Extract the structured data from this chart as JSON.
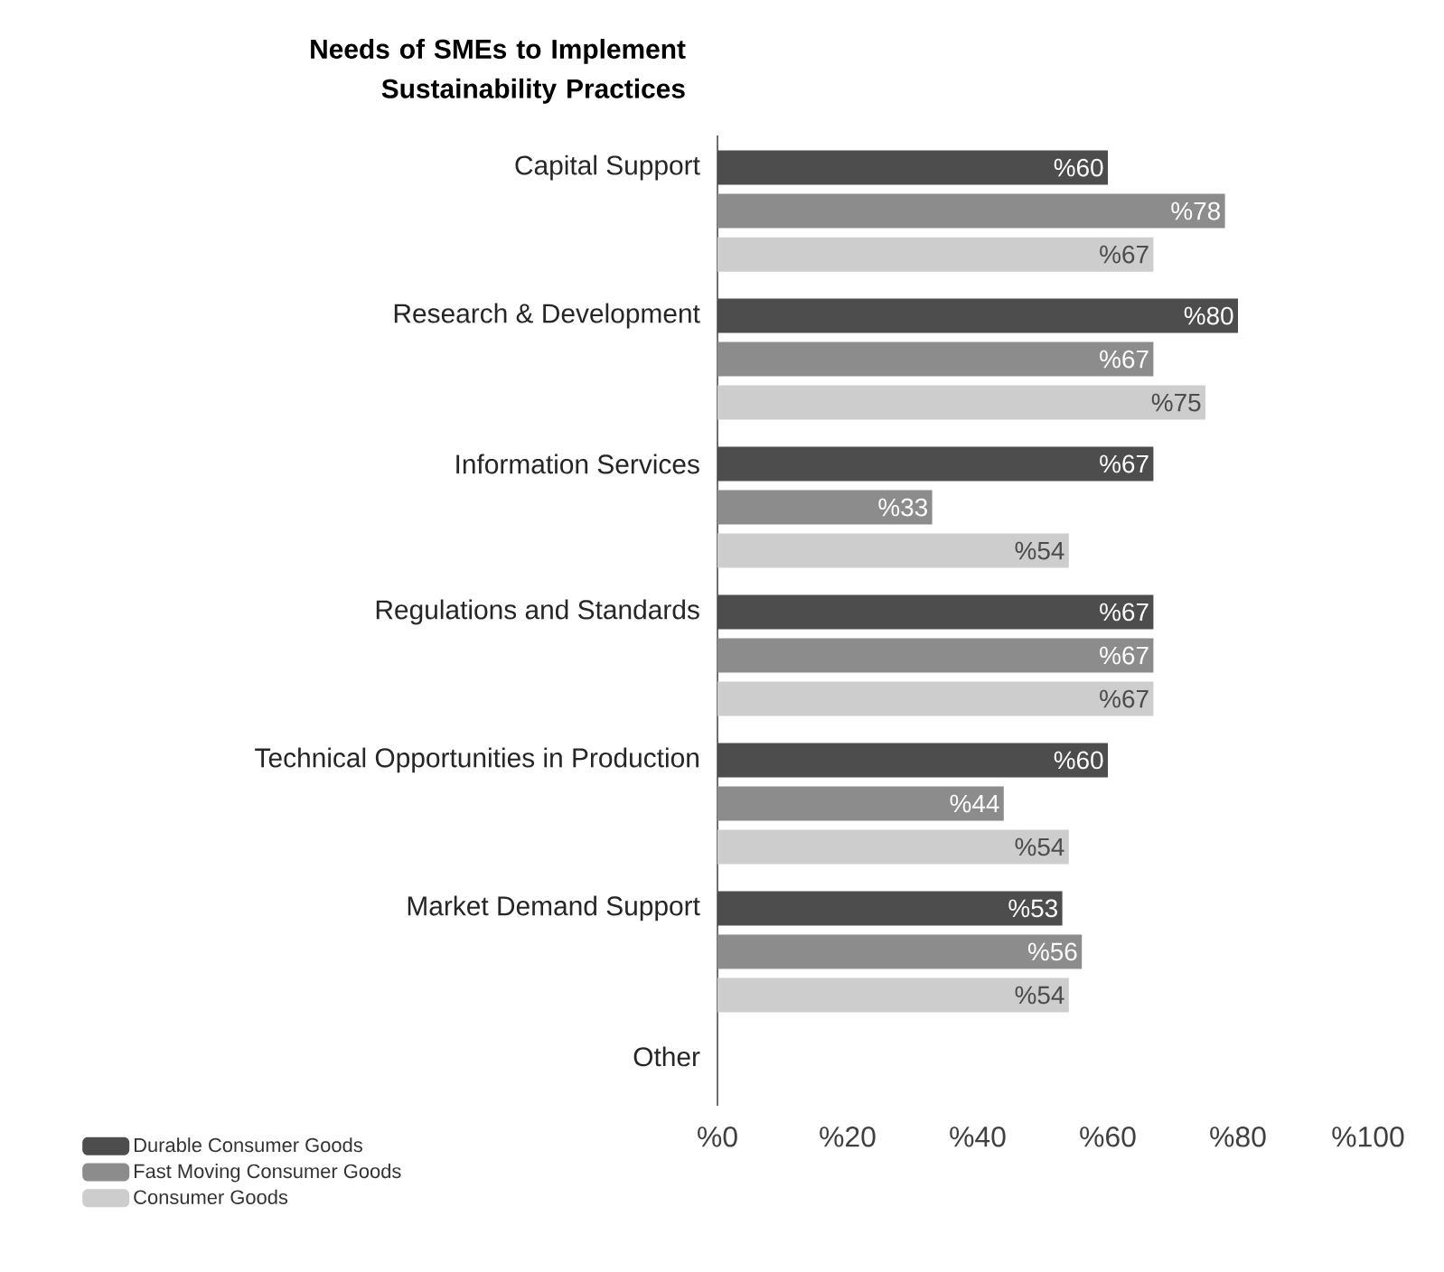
{
  "chart_data": {
    "type": "bar",
    "orientation": "horizontal",
    "title": "Needs of SMEs to Implement Sustainability Practices",
    "categories": [
      "Capital Support",
      "Research & Development",
      "Information Services",
      "Regulations and Standards",
      "Technical Opportunities in Production",
      "Market Demand Support",
      "Other"
    ],
    "series": [
      {
        "name": "Durable Consumer Goods",
        "color": "#4d4d4d",
        "values": [
          60,
          80,
          67,
          67,
          60,
          53,
          null
        ],
        "value_labels": [
          "%60",
          "%80",
          "%67",
          "%67",
          "%60",
          "%53",
          null
        ]
      },
      {
        "name": "Fast Moving Consumer Goods",
        "color": "#8c8c8c",
        "values": [
          78,
          67,
          33,
          67,
          44,
          56,
          null
        ],
        "value_labels": [
          "%78",
          "%67",
          "%33",
          "%67",
          "%44",
          "%56",
          null
        ]
      },
      {
        "name": "Consumer Goods",
        "color": "#cdcdcd",
        "values": [
          67,
          75,
          54,
          67,
          54,
          54,
          null
        ],
        "value_labels": [
          "%67",
          "%75",
          "%54",
          "%67",
          "%54",
          "%54",
          null
        ]
      }
    ],
    "xlim": [
      0,
      100
    ],
    "xticks": [
      {
        "value": 0,
        "label": "%0"
      },
      {
        "value": 20,
        "label": "%20"
      },
      {
        "value": 40,
        "label": "%40"
      },
      {
        "value": 60,
        "label": "%60"
      },
      {
        "value": 80,
        "label": "%80"
      },
      {
        "value": 100,
        "label": "%100"
      }
    ],
    "legend": "bottom left"
  }
}
